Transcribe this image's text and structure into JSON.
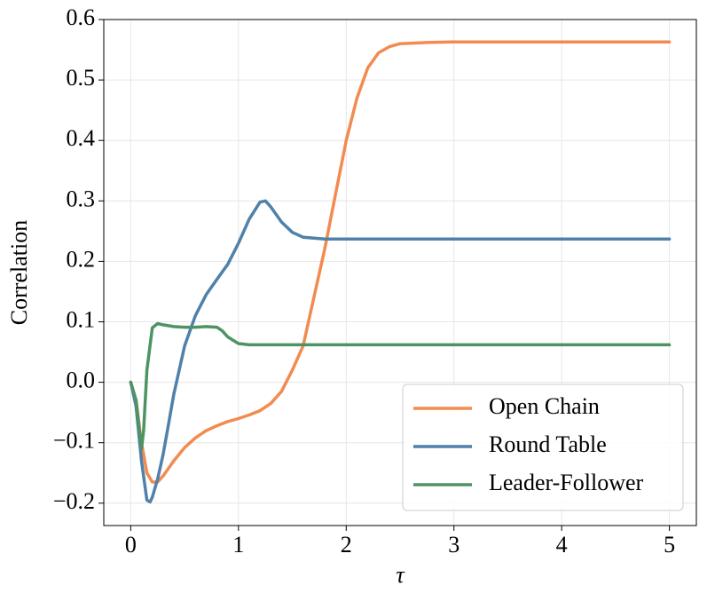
{
  "chart_data": {
    "type": "line",
    "xlabel": "τ",
    "ylabel": "Correlation",
    "xlim": [
      -0.25,
      5.25
    ],
    "ylim": [
      -0.237,
      0.6
    ],
    "xticks": [
      0,
      1,
      2,
      3,
      4,
      5
    ],
    "yticks": [
      {
        "value": -0.2,
        "label": "−0.2"
      },
      {
        "value": -0.1,
        "label": "−0.1"
      },
      {
        "value": 0,
        "label": "0.0"
      },
      0.1,
      0.2,
      0.3,
      0.4,
      0.5,
      0.6
    ],
    "grid": true,
    "legend": "lower right",
    "series": [
      {
        "name": "Open Chain",
        "color": "#f28b50",
        "x": [
          0,
          0.05,
          0.1,
          0.15,
          0.2,
          0.25,
          0.3,
          0.4,
          0.5,
          0.6,
          0.7,
          0.8,
          0.9,
          1.0,
          1.1,
          1.2,
          1.3,
          1.4,
          1.5,
          1.6,
          1.7,
          1.8,
          1.9,
          2.0,
          2.1,
          2.2,
          2.3,
          2.4,
          2.5,
          2.75,
          3,
          4,
          5
        ],
        "values": [
          0,
          -0.03,
          -0.1,
          -0.15,
          -0.165,
          -0.165,
          -0.155,
          -0.13,
          -0.108,
          -0.092,
          -0.08,
          -0.072,
          -0.065,
          -0.06,
          -0.054,
          -0.047,
          -0.035,
          -0.015,
          0.02,
          0.06,
          0.14,
          0.22,
          0.31,
          0.4,
          0.47,
          0.52,
          0.545,
          0.555,
          0.56,
          0.562,
          0.563,
          0.563,
          0.563
        ]
      },
      {
        "name": "Round Table",
        "color": "#4f81aa",
        "x": [
          0,
          0.05,
          0.1,
          0.15,
          0.18,
          0.2,
          0.25,
          0.3,
          0.35,
          0.4,
          0.45,
          0.5,
          0.6,
          0.7,
          0.8,
          0.9,
          1.0,
          1.1,
          1.2,
          1.25,
          1.3,
          1.4,
          1.5,
          1.6,
          1.8,
          2,
          3,
          5
        ],
        "values": [
          0,
          -0.04,
          -0.13,
          -0.195,
          -0.198,
          -0.19,
          -0.16,
          -0.12,
          -0.07,
          -0.02,
          0.02,
          0.06,
          0.11,
          0.145,
          0.17,
          0.195,
          0.23,
          0.27,
          0.298,
          0.3,
          0.29,
          0.265,
          0.248,
          0.24,
          0.237,
          0.237,
          0.237,
          0.237
        ]
      },
      {
        "name": "Leader-Follower",
        "color": "#4e9463",
        "x": [
          0,
          0.05,
          0.08,
          0.1,
          0.12,
          0.15,
          0.2,
          0.25,
          0.3,
          0.4,
          0.5,
          0.6,
          0.7,
          0.8,
          0.85,
          0.9,
          1.0,
          1.1,
          1.5,
          5
        ],
        "values": [
          0,
          -0.03,
          -0.08,
          -0.11,
          -0.08,
          0.02,
          0.09,
          0.097,
          0.095,
          0.092,
          0.091,
          0.091,
          0.092,
          0.091,
          0.085,
          0.075,
          0.064,
          0.062,
          0.062,
          0.062
        ]
      }
    ]
  }
}
